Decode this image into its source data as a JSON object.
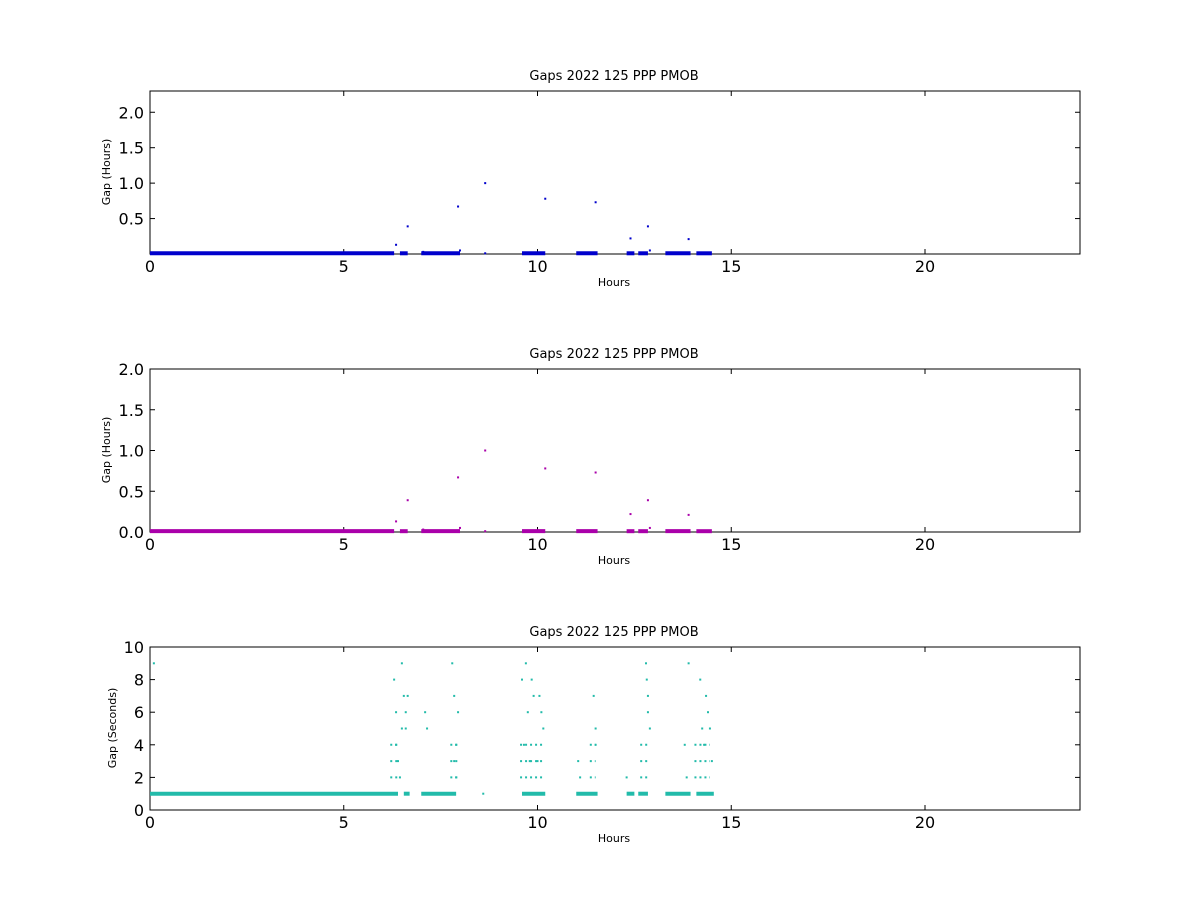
{
  "chart_data": [
    {
      "type": "scatter",
      "title": "Gaps 2022 125 PPP  PMOB",
      "xlabel": "Hours",
      "ylabel": "Gap (Hours)",
      "xlim": [
        0,
        24
      ],
      "ylim": [
        0,
        2.3
      ],
      "xticks": [
        0,
        5,
        10,
        15,
        20
      ],
      "yticks": [
        0.5,
        1.0,
        1.5,
        2.0
      ],
      "color": "#0000cc",
      "grid": false,
      "series": [
        {
          "x": [
            6.35,
            6.65,
            7.05,
            7.95,
            8.0,
            8.65,
            8.65,
            10.2,
            11.5,
            12.4,
            12.85,
            12.9,
            13.9
          ],
          "y": [
            0.13,
            0.39,
            0.03,
            0.67,
            0.05,
            1.0,
            0.01,
            0.78,
            0.73,
            0.22,
            0.39,
            0.05,
            0.21
          ]
        }
      ],
      "baseline_segments": [
        [
          0.0,
          6.3
        ],
        [
          6.45,
          6.65
        ],
        [
          7.0,
          8.0
        ],
        [
          9.6,
          10.2
        ],
        [
          11.0,
          11.55
        ],
        [
          12.3,
          12.5
        ],
        [
          12.6,
          12.85
        ],
        [
          13.3,
          13.95
        ],
        [
          14.1,
          14.5
        ]
      ],
      "baseline_value": 0.01
    },
    {
      "type": "scatter",
      "title": "Gaps 2022 125 PPP  PMOB",
      "xlabel": "Hours",
      "ylabel": "Gap (Hours)",
      "xlim": [
        0,
        24
      ],
      "ylim": [
        0,
        2.0
      ],
      "xticks": [
        0,
        5,
        10,
        15,
        20
      ],
      "yticks": [
        0.0,
        0.5,
        1.0,
        1.5,
        2.0
      ],
      "color": "#aa00aa",
      "grid": false,
      "series": [
        {
          "x": [
            6.35,
            6.65,
            7.05,
            7.95,
            8.0,
            8.65,
            8.65,
            10.2,
            11.5,
            12.4,
            12.85,
            12.9,
            13.9
          ],
          "y": [
            0.13,
            0.39,
            0.03,
            0.67,
            0.05,
            1.0,
            0.01,
            0.78,
            0.73,
            0.22,
            0.39,
            0.05,
            0.21
          ]
        }
      ],
      "baseline_segments": [
        [
          0.0,
          6.3
        ],
        [
          6.45,
          6.65
        ],
        [
          7.0,
          8.0
        ],
        [
          9.6,
          10.2
        ],
        [
          11.0,
          11.55
        ],
        [
          12.3,
          12.5
        ],
        [
          12.6,
          12.85
        ],
        [
          13.3,
          13.95
        ],
        [
          14.1,
          14.5
        ]
      ],
      "baseline_value": 0.01
    },
    {
      "type": "scatter",
      "title": "Gaps 2022 125 PPP  PMOB",
      "xlabel": "Hours",
      "ylabel": "Gap (Seconds)",
      "xlim": [
        0,
        24
      ],
      "ylim": [
        0,
        10
      ],
      "xticks": [
        0,
        5,
        10,
        15,
        20
      ],
      "yticks": [
        0,
        2,
        4,
        6,
        8,
        10
      ],
      "color": "#22bbaa",
      "grid": false,
      "series": [
        {
          "x": [
            0.1,
            6.3,
            6.35,
            6.35,
            6.4,
            6.45,
            6.5,
            6.5,
            6.55,
            6.6,
            6.6,
            6.65,
            7.1,
            7.15,
            7.8,
            7.85,
            7.85,
            7.9,
            7.9,
            7.95,
            8.6,
            9.6,
            9.65,
            9.7,
            9.75,
            9.8,
            9.85,
            9.9,
            10.0,
            10.05,
            10.1,
            10.15,
            11.05,
            11.1,
            11.45,
            11.5,
            11.5,
            12.3,
            12.35,
            12.8,
            12.82,
            12.85,
            12.85,
            12.9,
            13.8,
            13.85,
            13.9,
            14.2,
            14.25,
            14.3,
            14.35,
            14.4,
            14.45,
            14.5
          ],
          "y": [
            9,
            8,
            6,
            4,
            3,
            2,
            9,
            5,
            7,
            6,
            5,
            7,
            6,
            5,
            9,
            7,
            3,
            4,
            2,
            6,
            1,
            8,
            4,
            9,
            6,
            3,
            8,
            7,
            3,
            7,
            6,
            5,
            3,
            2,
            7,
            5,
            4,
            2,
            1,
            9,
            8,
            7,
            6,
            5,
            4,
            2,
            9,
            8,
            5,
            4,
            7,
            6,
            5,
            3
          ]
        }
      ],
      "band_segments": [
        [
          6.2,
          6.4
        ],
        [
          7.75,
          7.95
        ],
        [
          9.55,
          10.15
        ],
        [
          11.35,
          11.5
        ],
        [
          12.65,
          12.9
        ],
        [
          14.05,
          14.45
        ]
      ],
      "band_values": [
        2,
        3,
        4
      ],
      "baseline_segments": [
        [
          0.0,
          6.4
        ],
        [
          6.55,
          6.7
        ],
        [
          7.0,
          7.9
        ],
        [
          9.6,
          10.2
        ],
        [
          11.0,
          11.55
        ],
        [
          12.3,
          12.5
        ],
        [
          12.6,
          12.85
        ],
        [
          13.3,
          13.95
        ],
        [
          14.1,
          14.55
        ]
      ],
      "baseline_value": 1
    }
  ]
}
